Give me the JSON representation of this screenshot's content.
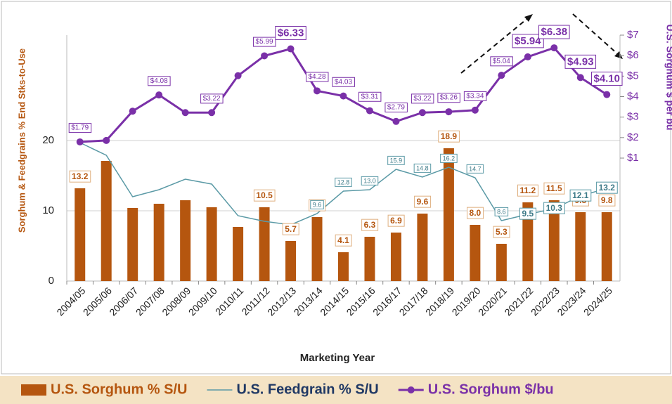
{
  "chart_data": {
    "type": "bar",
    "x_label": "Marketing Year",
    "y_label": "Sorghum & Feedgrains % End Stks-to-Use",
    "y2_label": "U.S. Sorghum $ per bu",
    "categories": [
      "2004/05",
      "2005/06",
      "2006/07",
      "2007/08",
      "2008/09",
      "2009/10",
      "2010/11",
      "2011/12",
      "2012/13",
      "2013/14",
      "2014/15",
      "2015/16",
      "2016/17",
      "2017/18",
      "2018/19",
      "2019/20",
      "2020/21",
      "2021/22",
      "2022/23",
      "2023/24",
      "2024/25"
    ],
    "series": [
      {
        "name": "U.S. Sorghum % S/U",
        "type": "bar",
        "color": "#b5560f",
        "values": [
          13.2,
          17.1,
          10.4,
          11.0,
          11.5,
          10.5,
          7.7,
          10.5,
          5.7,
          9.1,
          4.1,
          6.3,
          6.9,
          9.6,
          18.9,
          8.0,
          5.3,
          11.2,
          11.5,
          9.8,
          9.8
        ],
        "value_labels": [
          "13.2",
          null,
          null,
          null,
          null,
          null,
          null,
          "10.5",
          "5.7",
          "9.1",
          "4.1",
          "6.3",
          "6.9",
          "9.6",
          "18.9",
          "8.0",
          "5.3",
          "11.2",
          "11.5",
          "9.8",
          "9.8"
        ]
      },
      {
        "name": "U.S. Feedgrain % S/U",
        "type": "line",
        "color": "#5b9aa6",
        "values": [
          19.7,
          17.9,
          12.0,
          13.0,
          14.5,
          13.8,
          9.3,
          8.5,
          8.0,
          9.6,
          12.8,
          13.0,
          15.9,
          14.8,
          16.2,
          14.7,
          8.6,
          9.5,
          10.3,
          12.1,
          13.2
        ],
        "value_labels": [
          null,
          null,
          null,
          null,
          null,
          null,
          null,
          null,
          null,
          "9.6",
          "12.8",
          "13.0",
          "15.9",
          "14.8",
          "16.2",
          "14.7",
          "8.6",
          "9.5",
          "10.3",
          "12.1",
          "13.2"
        ]
      },
      {
        "name": "U.S. Sorghum $/bu",
        "type": "line",
        "axis": "y2",
        "color": "#7a30a8",
        "values": [
          1.79,
          1.86,
          3.29,
          4.08,
          3.22,
          3.22,
          5.02,
          5.99,
          6.33,
          4.28,
          4.03,
          3.31,
          2.79,
          3.22,
          3.26,
          3.34,
          5.04,
          5.94,
          6.38,
          4.93,
          4.1
        ],
        "value_labels": [
          "$1.79",
          null,
          null,
          "$4.08",
          null,
          "$3.22",
          null,
          "$5.99",
          "$6.33",
          "$4.28",
          "$4.03",
          "$3.31",
          "$2.79",
          "$3.22",
          "$3.26",
          "$3.34",
          "$5.04",
          "$5.94",
          "$6.38",
          "$4.93",
          "$4.10"
        ]
      }
    ],
    "ylim": [
      0,
      35
    ],
    "yticks": [
      0,
      10,
      20
    ],
    "y2lim": [
      -5,
      7
    ],
    "y2ticks": [
      {
        "value": 1,
        "label": "$1"
      },
      {
        "value": 2,
        "label": "$2"
      },
      {
        "value": 3,
        "label": "$3"
      },
      {
        "value": 4,
        "label": "$4"
      },
      {
        "value": 5,
        "label": "$5"
      },
      {
        "value": 6,
        "label": "$6"
      },
      {
        "value": 7,
        "label": "$7"
      }
    ],
    "grid": true,
    "legend": "bottom"
  }
}
